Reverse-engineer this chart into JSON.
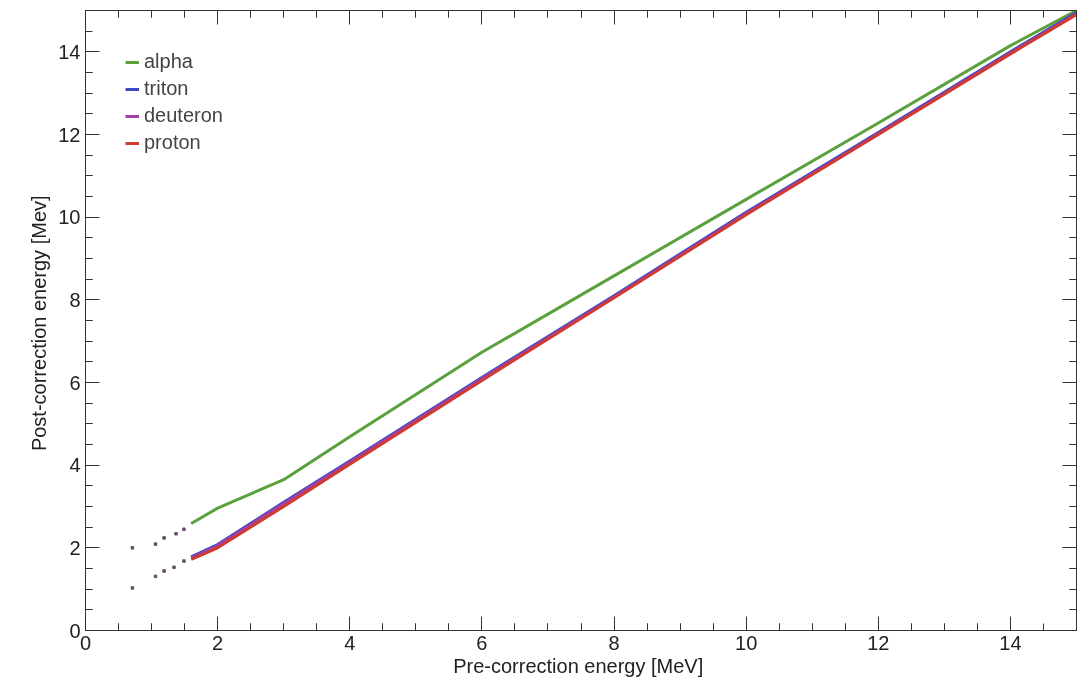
{
  "chart_data": {
    "type": "line",
    "xlabel": "Pre-correction energy  [MeV]",
    "ylabel": "Post-correction energy  [Mev]",
    "xlim": [
      0,
      15
    ],
    "ylim": [
      0,
      15
    ],
    "xticks": [
      0,
      2,
      4,
      6,
      8,
      10,
      12,
      14
    ],
    "yticks": [
      0,
      2,
      4,
      6,
      8,
      10,
      12,
      14
    ],
    "grid": false,
    "legend": "top left",
    "marker": "none",
    "line_style": "solid",
    "series": [
      {
        "name": "alpha",
        "color": "#5aa03c",
        "x": [
          1.6,
          2,
          3,
          4,
          6,
          8,
          10,
          12,
          14,
          15
        ],
        "values": [
          2.59,
          2.96,
          3.65,
          4.69,
          6.73,
          8.58,
          10.43,
          12.28,
          14.15,
          15
        ]
      },
      {
        "name": "triton",
        "color": "#4048c0",
        "x": [
          1.6,
          2,
          3,
          4,
          6,
          8,
          10,
          12,
          14,
          15
        ],
        "values": [
          1.78,
          2.08,
          3.1,
          4.1,
          6.12,
          8.1,
          10.12,
          12.05,
          14.0,
          14.95
        ]
      },
      {
        "name": "deuteron",
        "color": "#a040a8",
        "x": [
          1.6,
          2,
          3,
          4,
          6,
          8,
          10,
          12,
          14,
          15
        ],
        "values": [
          1.75,
          2.05,
          3.07,
          4.07,
          6.09,
          8.07,
          10.09,
          12.02,
          13.97,
          14.92
        ]
      },
      {
        "name": "proton",
        "color": "#d03a30",
        "x": [
          1.6,
          2,
          3,
          4,
          6,
          8,
          10,
          12,
          14,
          15
        ],
        "values": [
          1.72,
          2.0,
          3.0,
          4.02,
          6.05,
          8.05,
          10.06,
          12.0,
          13.95,
          14.9
        ]
      },
      {
        "type": "scatter",
        "marker": "square",
        "color": "#6a4a6a",
        "x": [
          0.71,
          0.71,
          1.06,
          1.19,
          1.34,
          1.49,
          1.06,
          1.19,
          1.37,
          1.49
        ],
        "values": [
          1.03,
          2.0,
          1.31,
          1.44,
          1.53,
          1.68,
          2.09,
          2.24,
          2.34,
          2.45
        ]
      }
    ]
  }
}
